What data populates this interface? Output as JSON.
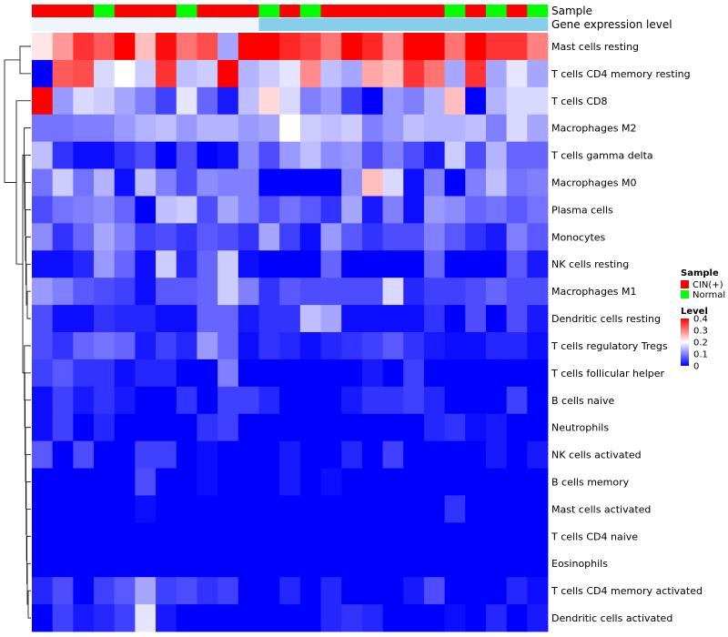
{
  "chart_data": {
    "type": "heatmap",
    "title": "",
    "annotation_tracks": [
      {
        "name": "Sample",
        "label": "Sample"
      },
      {
        "name": "Gene expression level",
        "label": "Gene expression level"
      }
    ],
    "sample_groups": [
      "CIN(+)",
      "CIN(+)",
      "CIN(+)",
      "Normal",
      "CIN(+)",
      "CIN(+)",
      "CIN(+)",
      "Normal",
      "CIN(+)",
      "CIN(+)",
      "CIN(+)",
      "Normal",
      "CIN(+)",
      "Normal",
      "CIN(+)",
      "CIN(+)",
      "CIN(+)",
      "CIN(+)",
      "CIN(+)",
      "CIN(+)",
      "Normal",
      "CIN(+)",
      "Normal",
      "CIN(+)",
      "Normal"
    ],
    "gene_expression_level": [
      "low",
      "low",
      "low",
      "low",
      "low",
      "low",
      "low",
      "low",
      "low",
      "low",
      "low",
      "high",
      "high",
      "high",
      "high",
      "high",
      "high",
      "high",
      "high",
      "high",
      "high",
      "high",
      "high",
      "high",
      "high"
    ],
    "rows": [
      "Mast cells resting",
      "T cells CD4 memory resting",
      "T cells CD8",
      "Macrophages M2",
      "T cells gamma delta",
      "Macrophages M0",
      "Plasma cells",
      "Monocytes",
      "NK cells resting",
      "Macrophages M1",
      "Dendritic cells resting",
      "T cells regulatory  Tregs",
      "T cells follicular helper",
      "B cells naive",
      "Neutrophils",
      "NK cells activated",
      "B cells memory",
      "Mast cells activated",
      "T cells CD4 naive",
      "Eosinophils",
      "T cells CD4 memory activated",
      "Dendritic cells activated"
    ],
    "values": [
      [
        0.22,
        0.28,
        0.36,
        0.33,
        0.4,
        0.25,
        0.39,
        0.31,
        0.34,
        0.13,
        0.4,
        0.4,
        0.37,
        0.35,
        0.31,
        0.4,
        0.37,
        0.29,
        0.4,
        0.4,
        0.31,
        0.4,
        0.36,
        0.36,
        0.3
      ],
      [
        0.0,
        0.33,
        0.34,
        0.17,
        0.2,
        0.16,
        0.36,
        0.15,
        0.16,
        0.4,
        0.14,
        0.16,
        0.18,
        0.29,
        0.15,
        0.13,
        0.27,
        0.25,
        0.36,
        0.31,
        0.13,
        0.36,
        0.13,
        0.18,
        0.13
      ],
      [
        0.4,
        0.12,
        0.17,
        0.16,
        0.13,
        0.1,
        0.05,
        0.18,
        0.08,
        0.02,
        0.15,
        0.23,
        0.17,
        0.1,
        0.12,
        0.05,
        0.0,
        0.12,
        0.1,
        0.14,
        0.25,
        0.0,
        0.14,
        0.17,
        0.17
      ],
      [
        0.09,
        0.09,
        0.1,
        0.1,
        0.12,
        0.14,
        0.15,
        0.12,
        0.14,
        0.14,
        0.12,
        0.13,
        0.2,
        0.16,
        0.15,
        0.16,
        0.1,
        0.12,
        0.15,
        0.14,
        0.14,
        0.15,
        0.1,
        0.17,
        0.13
      ],
      [
        0.15,
        0.04,
        0.01,
        0.01,
        0.04,
        0.06,
        0.0,
        0.06,
        0.0,
        0.01,
        0.11,
        0.06,
        0.12,
        0.15,
        0.11,
        0.12,
        0.06,
        0.1,
        0.06,
        0.02,
        0.16,
        0.06,
        0.14,
        0.08,
        0.08
      ],
      [
        0.09,
        0.16,
        0.09,
        0.14,
        0.01,
        0.15,
        0.1,
        0.06,
        0.11,
        0.1,
        0.1,
        0.0,
        0.0,
        0.0,
        0.0,
        0.11,
        0.25,
        0.17,
        0.01,
        0.1,
        0.0,
        0.1,
        0.15,
        0.09,
        0.1
      ],
      [
        0.06,
        0.09,
        0.1,
        0.11,
        0.08,
        0.0,
        0.15,
        0.16,
        0.06,
        0.13,
        0.1,
        0.06,
        0.09,
        0.07,
        0.04,
        0.13,
        0.02,
        0.1,
        0.01,
        0.12,
        0.11,
        0.08,
        0.09,
        0.07,
        0.09
      ],
      [
        0.11,
        0.04,
        0.08,
        0.13,
        0.1,
        0.05,
        0.06,
        0.04,
        0.07,
        0.06,
        0.04,
        0.13,
        0.05,
        0.01,
        0.12,
        0.07,
        0.04,
        0.06,
        0.06,
        0.1,
        0.07,
        0.04,
        0.02,
        0.1,
        0.07
      ],
      [
        0.01,
        0.01,
        0.03,
        0.12,
        0.08,
        0.01,
        0.16,
        0.03,
        0.08,
        0.16,
        0.01,
        0.0,
        0.0,
        0.0,
        0.08,
        0.0,
        0.0,
        0.0,
        0.0,
        0.08,
        0.0,
        0.0,
        0.0,
        0.07,
        0.02
      ],
      [
        0.12,
        0.1,
        0.07,
        0.06,
        0.05,
        0.01,
        0.07,
        0.07,
        0.08,
        0.16,
        0.1,
        0.04,
        0.07,
        0.06,
        0.06,
        0.06,
        0.06,
        0.17,
        0.03,
        0.05,
        0.05,
        0.06,
        0.08,
        0.06,
        0.06
      ],
      [
        0.06,
        0.01,
        0.01,
        0.04,
        0.03,
        0.03,
        0.01,
        0.01,
        0.08,
        0.08,
        0.02,
        0.04,
        0.04,
        0.15,
        0.13,
        0.01,
        0.01,
        0.01,
        0.01,
        0.04,
        0.0,
        0.06,
        0.0,
        0.06,
        0.02
      ],
      [
        0.06,
        0.04,
        0.08,
        0.09,
        0.08,
        0.02,
        0.05,
        0.03,
        0.12,
        0.08,
        0.01,
        0.04,
        0.03,
        0.01,
        0.03,
        0.04,
        0.05,
        0.07,
        0.04,
        0.02,
        0.01,
        0.01,
        0.03,
        0.03,
        0.01
      ],
      [
        0.05,
        0.07,
        0.04,
        0.04,
        0.01,
        0.03,
        0.03,
        0.0,
        0.0,
        0.1,
        0.0,
        0.0,
        0.0,
        0.0,
        0.0,
        0.0,
        0.02,
        0.0,
        0.05,
        0.0,
        0.0,
        0.0,
        0.0,
        0.0,
        0.0
      ],
      [
        0.01,
        0.05,
        0.02,
        0.04,
        0.02,
        0.0,
        0.0,
        0.04,
        0.0,
        0.05,
        0.05,
        0.03,
        0.0,
        0.0,
        0.0,
        0.02,
        0.04,
        0.04,
        0.05,
        0.03,
        0.0,
        0.0,
        0.0,
        0.05,
        0.0
      ],
      [
        0.01,
        0.05,
        0.0,
        0.03,
        0.0,
        0.0,
        0.0,
        0.0,
        0.04,
        0.05,
        0.0,
        0.0,
        0.0,
        0.0,
        0.0,
        0.0,
        0.0,
        0.0,
        0.0,
        0.03,
        0.04,
        0.01,
        0.02,
        0.0,
        0.0
      ],
      [
        0.07,
        0.0,
        0.06,
        0.0,
        0.0,
        0.05,
        0.05,
        0.0,
        0.01,
        0.0,
        0.0,
        0.0,
        0.02,
        0.0,
        0.0,
        0.03,
        0.0,
        0.05,
        0.0,
        0.0,
        0.0,
        0.0,
        0.02,
        0.0,
        0.02
      ],
      [
        0.0,
        0.0,
        0.0,
        0.0,
        0.0,
        0.06,
        0.0,
        0.0,
        0.01,
        0.0,
        0.0,
        0.0,
        0.02,
        0.0,
        0.01,
        0.0,
        0.0,
        0.0,
        0.0,
        0.0,
        0.0,
        0.0,
        0.0,
        0.0,
        0.0
      ],
      [
        0.0,
        0.0,
        0.0,
        0.0,
        0.0,
        0.01,
        0.0,
        0.0,
        0.0,
        0.0,
        0.0,
        0.0,
        0.0,
        0.0,
        0.0,
        0.0,
        0.0,
        0.0,
        0.0,
        0.0,
        0.04,
        0.0,
        0.0,
        0.0,
        0.0
      ],
      [
        0.0,
        0.0,
        0.0,
        0.0,
        0.0,
        0.0,
        0.0,
        0.0,
        0.0,
        0.0,
        0.0,
        0.0,
        0.0,
        0.0,
        0.0,
        0.0,
        0.0,
        0.0,
        0.0,
        0.0,
        0.0,
        0.0,
        0.0,
        0.0,
        0.0
      ],
      [
        0.0,
        0.0,
        0.0,
        0.0,
        0.0,
        0.0,
        0.0,
        0.0,
        0.0,
        0.0,
        0.0,
        0.0,
        0.0,
        0.0,
        0.0,
        0.0,
        0.0,
        0.0,
        0.0,
        0.0,
        0.0,
        0.0,
        0.0,
        0.0,
        0.0
      ],
      [
        0.03,
        0.06,
        0.0,
        0.05,
        0.07,
        0.13,
        0.05,
        0.06,
        0.04,
        0.05,
        0.0,
        0.0,
        0.03,
        0.0,
        0.03,
        0.0,
        0.0,
        0.0,
        0.02,
        0.06,
        0.0,
        0.0,
        0.0,
        0.03,
        0.01
      ],
      [
        0.0,
        0.05,
        0.02,
        0.03,
        0.05,
        0.18,
        0.02,
        0.0,
        0.0,
        0.0,
        0.0,
        0.0,
        0.0,
        0.0,
        0.03,
        0.04,
        0.03,
        0.0,
        0.0,
        0.0,
        0.01,
        0.0,
        0.03,
        0.0,
        0.02
      ]
    ],
    "color_scale": {
      "min": 0,
      "mid": 0.2,
      "max": 0.4,
      "low_color": "#0000ff",
      "mid_color": "#ffffff",
      "high_color": "#ff0000"
    },
    "legends": {
      "sample": {
        "title": "Sample",
        "items": [
          {
            "label": "CIN(+)",
            "color": "#ff0000"
          },
          {
            "label": "Normal",
            "color": "#00ff00"
          }
        ]
      },
      "level": {
        "title": "Level",
        "ticks": [
          "0.4",
          "0.3",
          "0.2",
          "0.1",
          "0"
        ],
        "tick_values": [
          0.4,
          0.3,
          0.2,
          0.1,
          0
        ]
      }
    },
    "track_colors": {
      "low": "#eef6fb",
      "high": "#87ceeb"
    },
    "row_dendrogram": true
  }
}
